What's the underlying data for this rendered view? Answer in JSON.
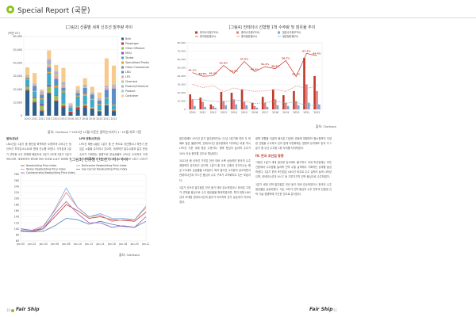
{
  "header": {
    "title": "Special Report (국문)"
  },
  "figures": {
    "fig1": {
      "title": "[그림2] 선종별 세계 신조선 발주량 추이",
      "source": "출처: Clarkson  * 2022년 10월 기준은 클락슨리서치 1~10월 자료 기준"
    },
    "fig2": {
      "title": "[그림3] 선종별 신조선가 지수 추이",
      "source": "출처: Clarkson"
    },
    "fig3": {
      "title": "[그림4] 컨테이너 선형별 1척 수주량 및 점유율 추이",
      "source": "출처: Clarkson"
    }
  },
  "chart_data": [
    {
      "type": "bar",
      "title": "[그림2] 선종별 세계 신조선 발주량 추이",
      "ylabel": "(백만 GT)",
      "ylim": [
        0,
        60000
      ],
      "yticks": [
        "0",
        "10,000",
        "20,000",
        "30,000",
        "40,000",
        "50,000",
        "60,000"
      ],
      "categories": [
        "2010",
        "2011",
        "2012",
        "2013",
        "2014",
        "2015",
        "2016",
        "2017",
        "2018",
        "2019",
        "2020",
        "2021",
        "2022"
      ],
      "series": [
        {
          "name": "Bulk",
          "color": "#2e5f8a",
          "values": [
            19000,
            10000,
            3500,
            17000,
            10500,
            6000,
            1500,
            5000,
            6500,
            4500,
            3000,
            7500,
            3500
          ]
        },
        {
          "name": "Passenger",
          "color": "#c0392b",
          "values": [
            500,
            500,
            500,
            500,
            1000,
            1500,
            1500,
            1500,
            1000,
            1000,
            500,
            500,
            500
          ]
        },
        {
          "name": "Other Offshore",
          "color": "#9bbb59",
          "values": [
            2500,
            3000,
            3500,
            4500,
            3500,
            1500,
            500,
            500,
            1000,
            1000,
            500,
            500,
            500
          ]
        },
        {
          "name": "MOU",
          "color": "#7f5fa8",
          "values": [
            500,
            1000,
            1500,
            1500,
            500,
            200,
            100,
            100,
            100,
            100,
            100,
            100,
            100
          ]
        },
        {
          "name": "Tanker",
          "color": "#3fa9c9",
          "values": [
            5000,
            3500,
            3500,
            9000,
            6000,
            8500,
            2500,
            7500,
            6500,
            5500,
            4000,
            4500,
            3000
          ]
        },
        {
          "name": "Specialised Product",
          "color": "#f39c12",
          "values": [
            500,
            500,
            500,
            500,
            1000,
            1000,
            500,
            500,
            1000,
            500,
            500,
            500,
            500
          ]
        },
        {
          "name": "Other Commercial",
          "color": "#7f8c8d",
          "values": [
            500,
            500,
            500,
            500,
            500,
            500,
            200,
            500,
            500,
            500,
            300,
            500,
            500
          ]
        },
        {
          "name": "LNG",
          "color": "#5b8fc9",
          "values": [
            500,
            3500,
            2500,
            3000,
            5000,
            2000,
            300,
            1500,
            4500,
            3000,
            2500,
            5500,
            12000
          ]
        },
        {
          "name": "LPG",
          "color": "#e9a3a3",
          "values": [
            300,
            500,
            500,
            1500,
            2500,
            1500,
            200,
            500,
            500,
            500,
            500,
            1500,
            1500
          ]
        },
        {
          "name": "Chemical",
          "color": "#b5cf7f",
          "values": [
            500,
            500,
            500,
            1000,
            1000,
            1000,
            500,
            500,
            500,
            500,
            500,
            500,
            500
          ]
        },
        {
          "name": "Product/Chemical",
          "color": "#b9a9d4",
          "values": [
            1000,
            500,
            1000,
            3000,
            2000,
            1500,
            500,
            1000,
            1000,
            500,
            500,
            1000,
            1000
          ]
        },
        {
          "name": "Product",
          "color": "#8fd0e0",
          "values": [
            300,
            300,
            300,
            1000,
            500,
            500,
            200,
            300,
            300,
            300,
            200,
            300,
            300
          ]
        },
        {
          "name": "Container",
          "color": "#f7c98b",
          "values": [
            5500,
            8000,
            1500,
            6500,
            4500,
            10500,
            1000,
            3000,
            5000,
            4000,
            4500,
            20500,
            14000
          ]
        }
      ]
    },
    {
      "type": "line",
      "title": "[그림3] 선종별 신조선가 지수 추이",
      "ylim": [
        60,
        280
      ],
      "yticks": [
        "60",
        "80",
        "100",
        "120",
        "140",
        "160",
        "180",
        "200",
        "220",
        "240",
        "260",
        "280"
      ],
      "xticks": [
        "Jan-00",
        "Jan-02",
        "Jan-04",
        "Jan-06",
        "Jan-08",
        "Jan-10",
        "Jan-12",
        "Jan-14",
        "Jan-16",
        "Jan-18",
        "Jan-20",
        "Jan-22"
      ],
      "series": [
        {
          "name": "Newbuilding Price Index",
          "color": "#c0392b",
          "values": [
            95,
            90,
            100,
            140,
            180,
            160,
            135,
            140,
            130,
            128,
            125,
            155
          ]
        },
        {
          "name": "Bulkcarrier Newbuilding Price Index",
          "color": "#e07f7f",
          "values": [
            100,
            95,
            110,
            160,
            220,
            170,
            140,
            145,
            125,
            130,
            130,
            170
          ]
        },
        {
          "name": "Tanker Newbuilding Price Index",
          "color": "#7fa8d4",
          "values": [
            95,
            92,
            105,
            165,
            235,
            170,
            140,
            150,
            135,
            135,
            130,
            175
          ]
        },
        {
          "name": "Gas Carrier Newbuilding Price Index",
          "color": "#4f7fb3",
          "values": [
            92,
            90,
            92,
            110,
            135,
            130,
            115,
            125,
            115,
            108,
            105,
            125
          ]
        },
        {
          "name": "Containership Newbuilding Price Index",
          "color": "#9b59b6",
          "values": [
            100,
            95,
            100,
            150,
            190,
            150,
            120,
            120,
            105,
            110,
            105,
            140
          ]
        }
      ]
    },
    {
      "type": "bar",
      "title": "[그림4] 컨테이너 선형별 1척 수주량 및 점유율 추이",
      "categories": [
        "2010",
        "2011",
        "2012",
        "2013",
        "2014",
        "2015",
        "2016",
        "2017",
        "2018",
        "2019",
        "2020",
        "2021",
        "2022"
      ],
      "yticks": [
        "0",
        "10,000",
        "20,000",
        "30,000",
        "40,000",
        "50,000",
        "60,000",
        "70,000",
        "80,000"
      ],
      "series": [
        {
          "name": "한국수주량(TEU)",
          "color": "#c0392b",
          "values": [
            18000,
            14000,
            6000,
            21000,
            20000,
            24000,
            8000,
            15000,
            24000,
            17000,
            22000,
            62000,
            40000
          ]
        },
        {
          "name": "중국수주량(TEU)",
          "color": "#e07f7f",
          "values": [
            12000,
            9000,
            4000,
            10000,
            12000,
            9000,
            4000,
            8000,
            12000,
            8000,
            10000,
            30000,
            22000
          ]
        },
        {
          "name": "일본수주량(TEU)",
          "color": "#7fa8d4",
          "values": [
            4000,
            3000,
            2000,
            5000,
            6000,
            5000,
            2000,
            3000,
            5000,
            4000,
            5000,
            8000,
            6000
          ]
        },
        {
          "name": "한국점유율(%)",
          "color": "#c0392b",
          "values": [
            44.1,
            39.9,
            40.3,
            52.8,
            43.3,
            57.6,
            45.4,
            51.3,
            48.9,
            58.7,
            39.3,
            67.2,
            64.4
          ]
        },
        {
          "name": "중국점유율(%)",
          "color": "#e07f7f",
          "values": [
            30.2,
            26.1,
            28.5,
            21.4,
            25.6,
            23.1,
            21.8,
            22.1,
            23.9,
            21.5,
            28.2,
            25.1,
            28.2
          ]
        },
        {
          "name": "일본점유율(%)",
          "color": "#7fa8d4",
          "values": [
            12.3,
            11.5,
            9.8,
            8.7,
            11.2,
            10.1,
            6.9,
            8.2,
            9.6,
            7.4,
            8.6,
            4.5,
            5.1
          ]
        }
      ],
      "labels": [
        "44.1%",
        "39.9%",
        "40.3%",
        "52.8%",
        "43.3%",
        "57.6%",
        "45.4%",
        "51.3%",
        "48.9%",
        "58.7%",
        "39.3%",
        "67.2%",
        "64.4%"
      ]
    }
  ],
  "text": {
    "col1": [
      {
        "kind": "sub",
        "text": "벌크(컨)선"
      },
      {
        "kind": "p",
        "text": "LNG선은 1분기 중 중단된 화학제가 두명하게 나타나는 등 신조선 투자감소(LD)와 함께 진수를 보였다. 기저효과 2분기 선박증 수주 판매에 배분도로 2분기 4주에 3분기 1분기 정도이며, 세계경영의 중장에 따라 공급을 소요가 발생할 것으로 판단된다."
      }
    ],
    "col2": [
      {
        "kind": "sub",
        "text": "LPG 유형(신조선)"
      },
      {
        "kind": "p",
        "text": "LPG선 해운시황은 1분기 중 큰 폭으로 개선했으나 하반기 운임은 시황을 유지하고 있으며, 세계적인 발주시황과 같은 운송 수요가 거대하는 방향으로 운송료율도 LPG선 수요까지 크게 증가하며 일정 중 한선종간 1분기 17% 상승한 3분기 1억1천만 달러 정도의 규모를 보였다."
      }
    ],
    "col3": [
      {
        "kind": "p",
        "text": "발주량에도 LPG선 분기 발주량보다는 21년 2분기에 여러 두 번째로 많은 물량이며, 컨테이너선 발주량에서 차지하는 비중 역시 LPG선 기준 세계 평균 수준이다. 향후 운임이 높아져 수주가 10% 이상 증가할 것으로 예상된다."
      },
      {
        "kind": "p",
        "text": "2022년 중 신조선 가격은 전년 대비 소폭 상승하여 한국의 수주 경쟁력이 유지되고 있으며, 1분기 중 주요 선종의 선가지수는 평균 2%대의 상승률을 나타냈다. 특히 벌크선 수주량이 감소하면서 컨테이너선과 가스선 중심의 수주 구조가 고착화되고 있는 모습이다."
      },
      {
        "kind": "p",
        "text": "1분기 신조선 발주량은 전년 동기 대비 감소하였으나 한국은 고부가 선박을 중심으로 수주 점유율을 확대하였으며, 특히 대형 LNG선과 초대형 컨테이너선의 발주가 이어지며 선가 상승세가 지속되었다."
      }
    ],
    "col4": [
      {
        "kind": "p",
        "text": "정책 영향을 이끌지 중국은 다양한 선종에 대형부터 중소형까지 다양한 선형을 수주하고 있어 업계 다변화에는 경쟁력 유지에도 한국 이 1분기 중 우선 수주량 1위 자리를 차지하였다."
      },
      {
        "kind": "sec",
        "text": "IV. 한국 조선업 동향"
      },
      {
        "kind": "p",
        "text": "그동안 1분기 세계 발주량 감소에도 불구하고 국내 조선업체는 모든 선종에서 수주량을 늘리며 선박 수출 실적에서 기록적인 성과를 달성하였다. 1분기 한국 조선업은 LNG선 위주로 수주 실적이 높게 나타났으며, 컨테이너선과 VLCC 등 고부가가치 선박 중심으로 수주하였다."
      },
      {
        "kind": "p",
        "text": "1분기 세계 선박 발주량은 전년 동기 대비 감소하였으나 한국의 수주 점유율은 상승하였다. 이는 고부가 선박 중심의 수주 전략과 친환경 선박 기술 경쟁력에 기인한 것으로 분석된다."
      }
    ]
  },
  "footer": {
    "left_page": "10",
    "right_page": "11",
    "brand": "Fair Ship"
  }
}
